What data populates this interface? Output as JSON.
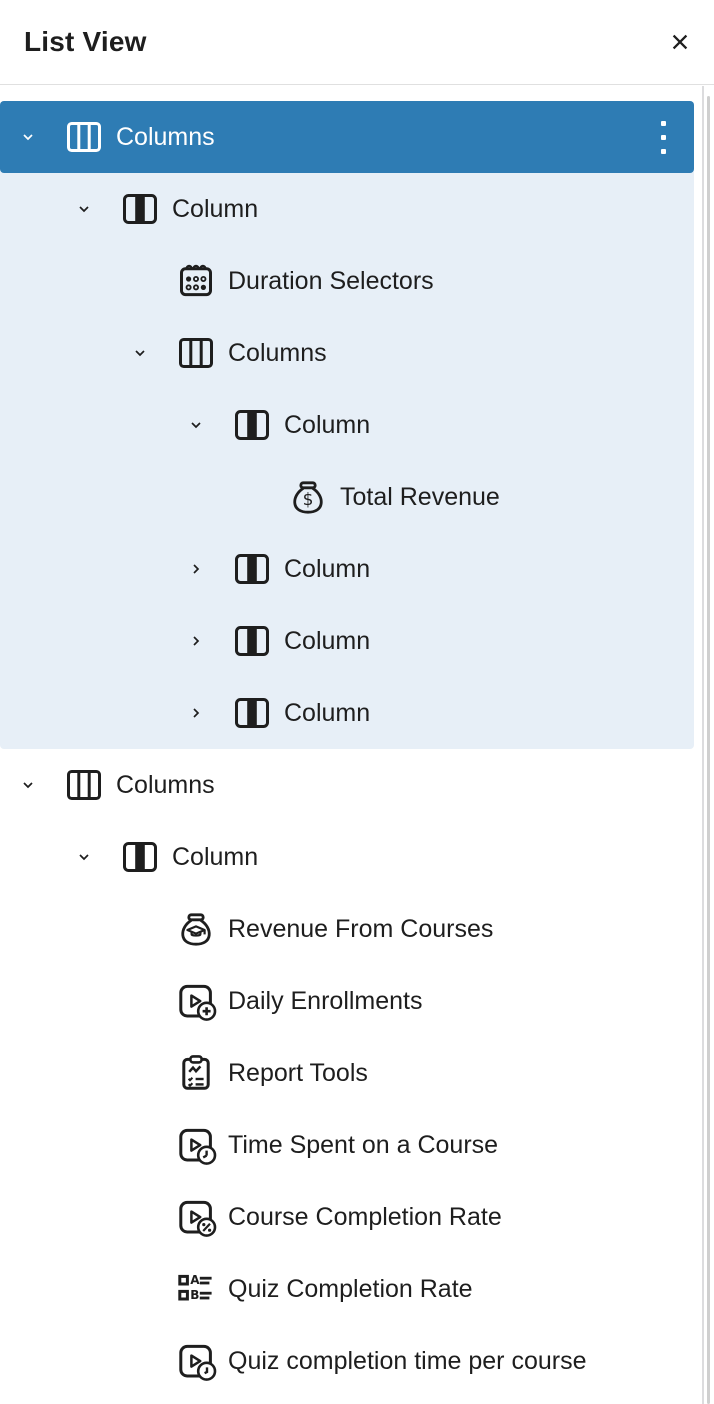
{
  "panel": {
    "title": "List View"
  },
  "colors": {
    "selected_bg": "#2e7cb4",
    "descendant_bg": "#e7eff7",
    "text": "#1e1e1e",
    "selected_text": "#ffffff",
    "divider": "#e0e0e0",
    "panel_border": "#dcdcde",
    "scrollbar_thumb": "#cfcfcf"
  },
  "tree": {
    "rows": [
      {
        "label": "Columns",
        "level": 1,
        "icon": "columns-icon",
        "chevron": "down",
        "selected": true,
        "options_menu": true,
        "in_selected_subtree": true
      },
      {
        "label": "Column",
        "level": 2,
        "icon": "column-icon",
        "chevron": "down",
        "in_selected_subtree": true
      },
      {
        "label": "Duration Selectors",
        "level": 3,
        "icon": "calendar-dots-icon",
        "chevron": null,
        "in_selected_subtree": true
      },
      {
        "label": "Columns",
        "level": 3,
        "icon": "columns-icon",
        "chevron": "down",
        "in_selected_subtree": true
      },
      {
        "label": "Column",
        "level": 4,
        "icon": "column-icon",
        "chevron": "down",
        "in_selected_subtree": true
      },
      {
        "label": "Total Revenue",
        "level": 5,
        "icon": "money-bag-dollar-icon",
        "chevron": null,
        "in_selected_subtree": true
      },
      {
        "label": "Column",
        "level": 4,
        "icon": "column-icon",
        "chevron": "right",
        "in_selected_subtree": true
      },
      {
        "label": "Column",
        "level": 4,
        "icon": "column-icon",
        "chevron": "right",
        "in_selected_subtree": true
      },
      {
        "label": "Column",
        "level": 4,
        "icon": "column-icon",
        "chevron": "right",
        "in_selected_subtree": true
      },
      {
        "label": "Columns",
        "level": 1,
        "icon": "columns-icon",
        "chevron": "down",
        "in_selected_subtree": false
      },
      {
        "label": "Column",
        "level": 2,
        "icon": "column-icon",
        "chevron": "down",
        "in_selected_subtree": false
      },
      {
        "label": "Revenue From Courses",
        "level": 3,
        "icon": "money-bag-graduation-icon",
        "chevron": null,
        "in_selected_subtree": false
      },
      {
        "label": "Daily Enrollments",
        "level": 3,
        "icon": "video-plus-icon",
        "chevron": null,
        "in_selected_subtree": false
      },
      {
        "label": "Report Tools",
        "level": 3,
        "icon": "clipboard-report-icon",
        "chevron": null,
        "in_selected_subtree": false
      },
      {
        "label": "Time Spent on a Course",
        "level": 3,
        "icon": "video-clock-icon",
        "chevron": null,
        "in_selected_subtree": false
      },
      {
        "label": "Course Completion Rate",
        "level": 3,
        "icon": "video-percent-icon",
        "chevron": null,
        "in_selected_subtree": false
      },
      {
        "label": "Quiz Completion Rate",
        "level": 3,
        "icon": "ab-list-icon",
        "chevron": null,
        "in_selected_subtree": false
      },
      {
        "label": "Quiz completion time per course",
        "level": 3,
        "icon": "video-time-icon",
        "chevron": null,
        "in_selected_subtree": false
      }
    ]
  }
}
